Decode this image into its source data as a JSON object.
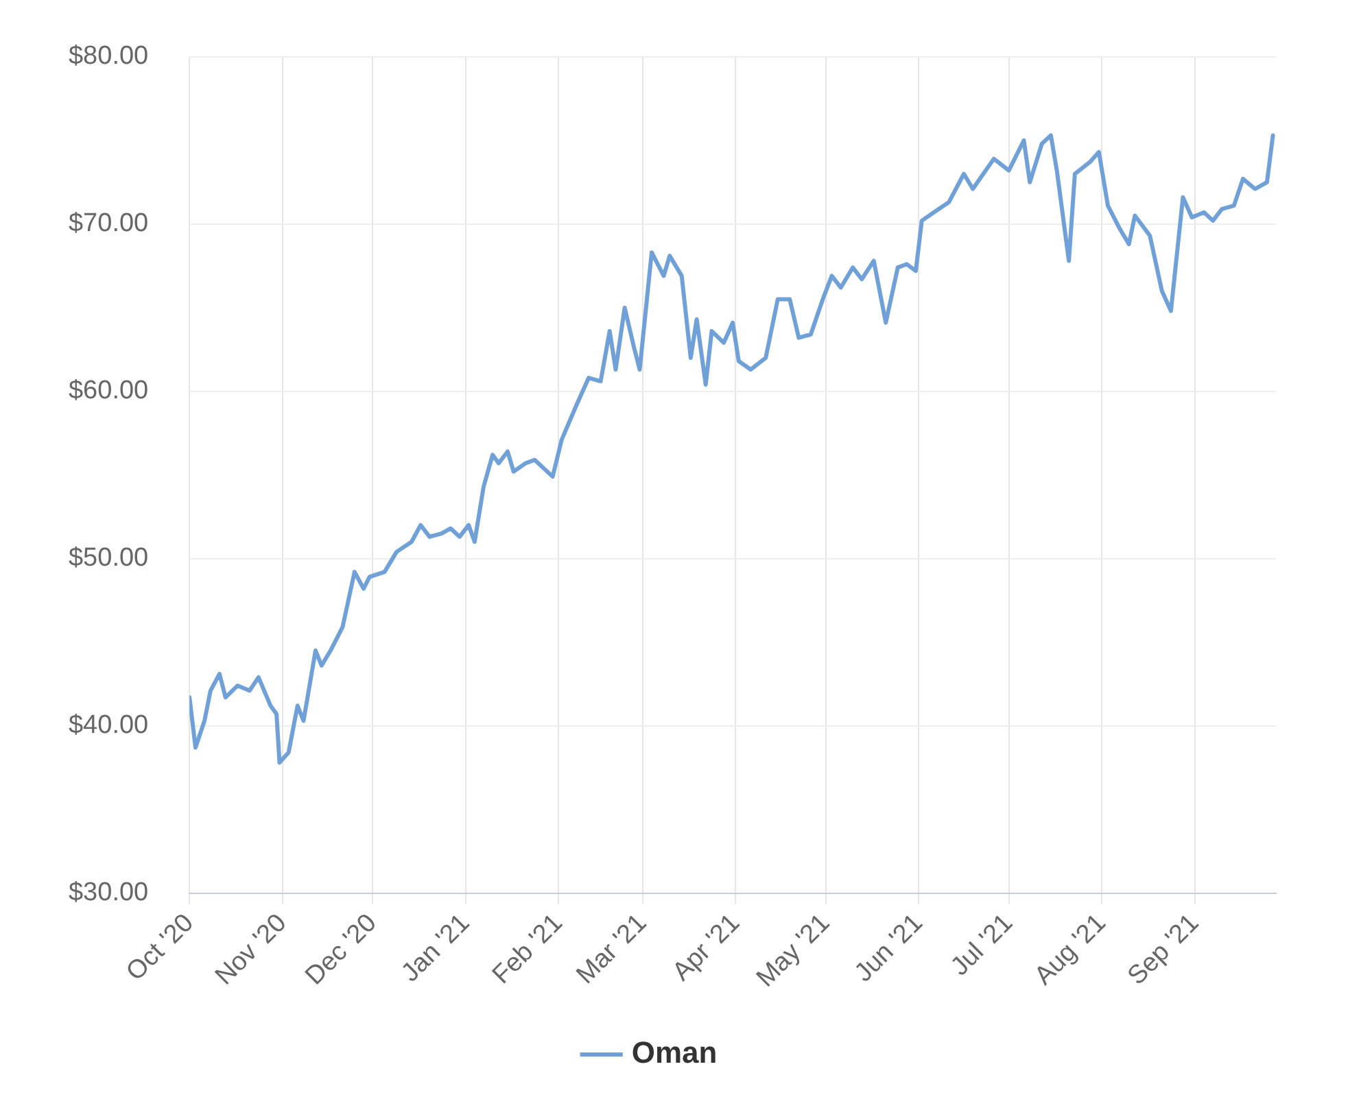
{
  "chart_data": {
    "type": "line",
    "x": [
      "2020-10-01",
      "2020-10-03",
      "2020-10-06",
      "2020-10-08",
      "2020-10-11",
      "2020-10-13",
      "2020-10-17",
      "2020-10-21",
      "2020-10-24",
      "2020-10-28",
      "2020-10-30",
      "2020-10-31",
      "2020-11-03",
      "2020-11-06",
      "2020-11-08",
      "2020-11-12",
      "2020-11-14",
      "2020-11-17",
      "2020-11-21",
      "2020-11-25",
      "2020-11-28",
      "2020-11-30",
      "2020-12-05",
      "2020-12-09",
      "2020-12-14",
      "2020-12-17",
      "2020-12-20",
      "2020-12-24",
      "2020-12-27",
      "2020-12-30",
      "2021-01-02",
      "2021-01-04",
      "2021-01-07",
      "2021-01-10",
      "2021-01-12",
      "2021-01-15",
      "2021-01-17",
      "2021-01-21",
      "2021-01-24",
      "2021-01-27",
      "2021-01-30",
      "2021-02-02",
      "2021-02-07",
      "2021-02-11",
      "2021-02-15",
      "2021-02-18",
      "2021-02-20",
      "2021-02-23",
      "2021-02-26",
      "2021-02-28",
      "2021-03-04",
      "2021-03-08",
      "2021-03-10",
      "2021-03-14",
      "2021-03-17",
      "2021-03-19",
      "2021-03-22",
      "2021-03-24",
      "2021-03-28",
      "2021-03-31",
      "2021-04-02",
      "2021-04-06",
      "2021-04-11",
      "2021-04-15",
      "2021-04-19",
      "2021-04-22",
      "2021-04-26",
      "2021-04-30",
      "2021-05-03",
      "2021-05-06",
      "2021-05-10",
      "2021-05-13",
      "2021-05-17",
      "2021-05-21",
      "2021-05-25",
      "2021-05-28",
      "2021-05-31",
      "2021-06-02",
      "2021-06-06",
      "2021-06-11",
      "2021-06-16",
      "2021-06-19",
      "2021-06-26",
      "2021-07-01",
      "2021-07-06",
      "2021-07-08",
      "2021-07-12",
      "2021-07-15",
      "2021-07-17",
      "2021-07-21",
      "2021-07-23",
      "2021-07-28",
      "2021-07-31",
      "2021-08-03",
      "2021-08-07",
      "2021-08-10",
      "2021-08-12",
      "2021-08-17",
      "2021-08-21",
      "2021-08-24",
      "2021-08-28",
      "2021-08-31",
      "2021-09-04",
      "2021-09-07",
      "2021-09-10",
      "2021-09-14",
      "2021-09-17",
      "2021-09-21",
      "2021-09-25",
      "2021-09-27"
    ],
    "series": [
      {
        "name": "Oman",
        "color": "#6fa0d8",
        "values": [
          41.7,
          38.7,
          40.3,
          42.1,
          43.1,
          41.7,
          42.4,
          42.1,
          42.9,
          41.2,
          40.7,
          37.8,
          38.4,
          41.2,
          40.3,
          44.5,
          43.6,
          44.5,
          45.9,
          49.2,
          48.2,
          48.9,
          49.2,
          50.4,
          51.0,
          52.0,
          51.3,
          51.5,
          51.8,
          51.3,
          52.0,
          51.0,
          54.3,
          56.2,
          55.7,
          56.4,
          55.2,
          55.7,
          55.9,
          55.4,
          54.9,
          57.1,
          59.2,
          60.8,
          60.6,
          63.6,
          61.3,
          65.0,
          62.7,
          61.3,
          68.3,
          66.9,
          68.1,
          66.9,
          62.0,
          64.3,
          60.4,
          63.6,
          62.9,
          64.1,
          61.8,
          61.3,
          62.0,
          65.5,
          65.5,
          63.2,
          63.4,
          65.5,
          66.9,
          66.2,
          67.4,
          66.7,
          67.8,
          64.1,
          67.4,
          67.6,
          67.2,
          70.2,
          70.7,
          71.3,
          73.0,
          72.1,
          73.9,
          73.2,
          75.0,
          72.5,
          74.8,
          75.3,
          73.2,
          67.8,
          73.0,
          73.7,
          74.3,
          71.1,
          69.7,
          68.8,
          70.5,
          69.3,
          66.0,
          64.8,
          71.6,
          70.4,
          70.7,
          70.2,
          70.9,
          71.1,
          72.7,
          72.1,
          72.5,
          75.3
        ]
      }
    ],
    "xlim": [
      "2020-10-01",
      "2021-09-28"
    ],
    "xticks": [
      {
        "value": "2020-10-01",
        "label": "Oct '20"
      },
      {
        "value": "2020-11-01",
        "label": "Nov '20"
      },
      {
        "value": "2020-12-01",
        "label": "Dec '20"
      },
      {
        "value": "2021-01-01",
        "label": "Jan '21"
      },
      {
        "value": "2021-02-01",
        "label": "Feb '21"
      },
      {
        "value": "2021-03-01",
        "label": "Mar '21"
      },
      {
        "value": "2021-04-01",
        "label": "Apr '21"
      },
      {
        "value": "2021-05-01",
        "label": "May '21"
      },
      {
        "value": "2021-06-01",
        "label": "Jun '21"
      },
      {
        "value": "2021-07-01",
        "label": "Jul '21"
      },
      {
        "value": "2021-08-01",
        "label": "Aug '21"
      },
      {
        "value": "2021-09-01",
        "label": "Sep '21"
      }
    ],
    "ylim": [
      30,
      80
    ],
    "yticks": [
      {
        "value": 30,
        "label": "$30.00"
      },
      {
        "value": 40,
        "label": "$40.00"
      },
      {
        "value": 50,
        "label": "$50.00"
      },
      {
        "value": 60,
        "label": "$60.00"
      },
      {
        "value": 70,
        "label": "$70.00"
      },
      {
        "value": 80,
        "label": "$80.00"
      }
    ],
    "grid": true,
    "legend": "bottom",
    "marker": "none",
    "line_style": "solid"
  }
}
